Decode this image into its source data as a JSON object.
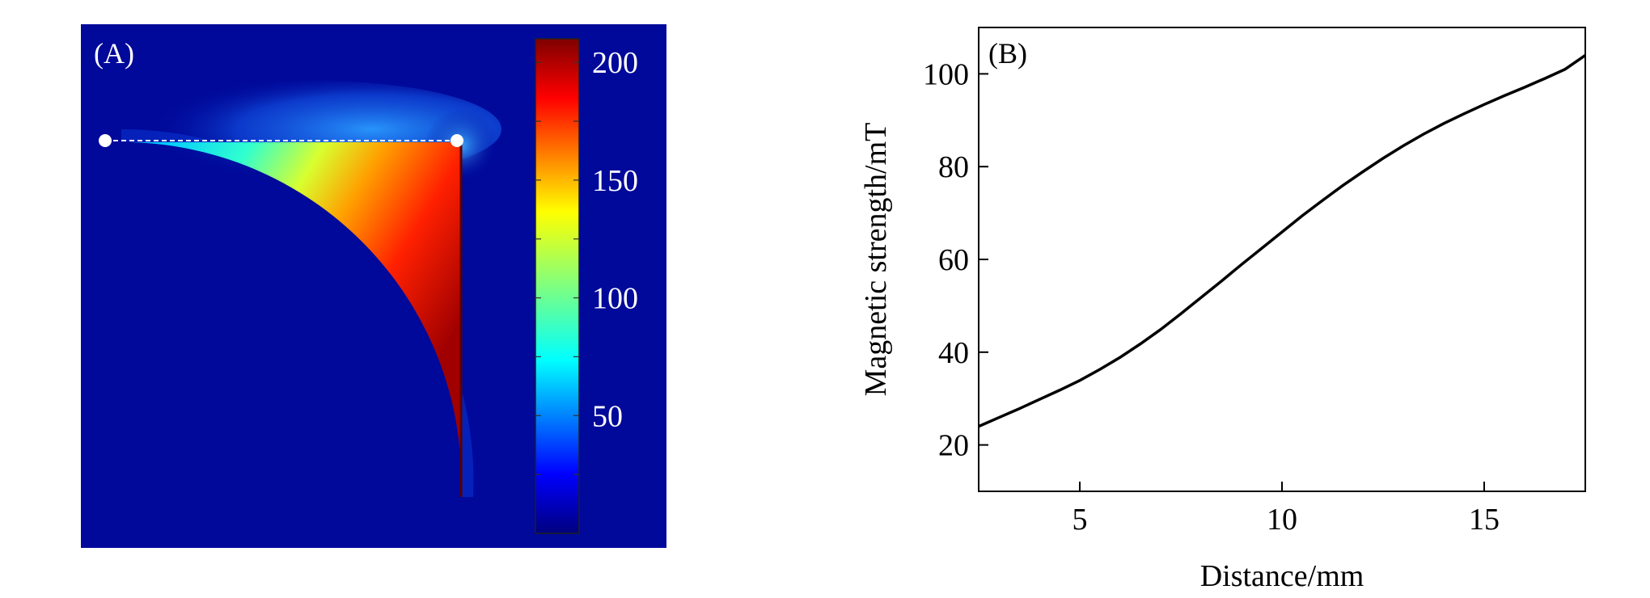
{
  "panel_a": {
    "label": "(A)",
    "colorbar": {
      "ticks": [
        50,
        100,
        150,
        200
      ],
      "range": [
        0,
        210
      ],
      "colormap": "jet"
    },
    "line_color": "#ffffff"
  },
  "chart_data": [
    {
      "type": "heatmap",
      "panel": "A",
      "label": "(A)",
      "colorbar_ticks": [
        50,
        100,
        150,
        200
      ],
      "colorbar_range": [
        0,
        210
      ],
      "colormap": "jet",
      "background_color": "#00099a"
    },
    {
      "type": "line",
      "panel": "B",
      "label": "(B)",
      "xlabel": "Distance/mm",
      "ylabel": "Magnetic strength/mT",
      "xlim": [
        2.5,
        17.5
      ],
      "ylim": [
        10,
        110
      ],
      "xticks": [
        5,
        10,
        15
      ],
      "yticks": [
        20,
        40,
        60,
        80,
        100
      ],
      "grid": false,
      "series": [
        {
          "x": [
            2.5,
            3,
            3.5,
            4,
            4.5,
            5,
            5.5,
            6,
            6.5,
            7,
            7.5,
            8,
            8.5,
            9,
            9.5,
            10,
            10.5,
            11,
            11.5,
            12,
            12.5,
            13,
            13.5,
            14,
            14.5,
            15,
            15.5,
            16,
            16.5,
            17,
            17.5
          ],
          "y": [
            24,
            25.9,
            27.8,
            29.8,
            31.8,
            33.9,
            36.3,
            38.9,
            41.8,
            44.9,
            48.3,
            51.8,
            55.3,
            58.9,
            62.4,
            65.9,
            69.4,
            72.7,
            75.9,
            78.9,
            81.8,
            84.5,
            87.0,
            89.3,
            91.4,
            93.4,
            95.3,
            97.1,
            99.0,
            101.0,
            104.0
          ],
          "color": "#000000"
        }
      ]
    }
  ]
}
